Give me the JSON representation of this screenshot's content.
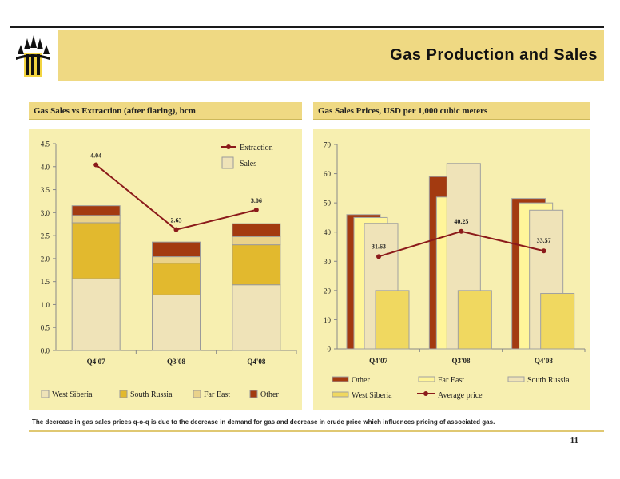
{
  "header": {
    "title": "Gas Production and Sales"
  },
  "left_panel": {
    "heading": "Gas Sales vs Extraction (after flaring), bcm"
  },
  "right_panel": {
    "heading": "Gas Sales Prices, USD per 1,000 cubic meters"
  },
  "footnote": "The decrease in gas sales prices q-o-q is due to the decrease in demand for gas and decrease in crude price which influences pricing of associated gas.",
  "page_number": "11",
  "colors": {
    "accent": "#efd983",
    "panel_bg": "#f7efb0",
    "line": "#8b1a1a"
  },
  "chart_data": [
    {
      "type": "bar",
      "stacked": true,
      "categories": [
        "Q4'07",
        "Q3'08",
        "Q4'08"
      ],
      "ylim": [
        0,
        4.5
      ],
      "yticks": [
        "0.0",
        "0.5",
        "1.0",
        "1.5",
        "2.0",
        "2.5",
        "3.0",
        "3.5",
        "4.0",
        "4.5"
      ],
      "series": [
        {
          "name": "West Siberia",
          "values": [
            1.56,
            1.21,
            1.43
          ],
          "color": "#efe3b8"
        },
        {
          "name": "South Russia",
          "values": [
            1.22,
            0.69,
            0.87
          ],
          "color": "#e2b92e"
        },
        {
          "name": "Far East",
          "values": [
            0.16,
            0.14,
            0.18
          ],
          "color": "#ead28a"
        },
        {
          "name": "Other",
          "values": [
            0.21,
            0.32,
            0.28
          ],
          "color": "#a33a10"
        }
      ],
      "line": {
        "name": "Extraction",
        "values": [
          4.04,
          2.63,
          3.06
        ],
        "labels": [
          "4.04",
          "2.63",
          "3.06"
        ]
      },
      "legend_top": [
        "Extraction",
        "Sales"
      ],
      "legend_bottom": [
        "West Siberia",
        "South Russia",
        "Far East",
        "Other"
      ]
    },
    {
      "type": "bar",
      "categories": [
        "Q4'07",
        "Q3'08",
        "Q4'08"
      ],
      "ylim": [
        0,
        70
      ],
      "yticks": [
        "0",
        "10",
        "20",
        "30",
        "40",
        "50",
        "60",
        "70"
      ],
      "series": [
        {
          "name": "Other",
          "values": [
            46,
            59,
            51.5
          ],
          "color": "#a33a10"
        },
        {
          "name": "Far East",
          "values": [
            45,
            52,
            50
          ],
          "color": "#fff59a"
        },
        {
          "name": "South Russia",
          "values": [
            43,
            63.5,
            47.5
          ],
          "color": "#efe3b8"
        },
        {
          "name": "West Siberia",
          "values": [
            20,
            20,
            19
          ],
          "color": "#f0d860"
        }
      ],
      "line": {
        "name": "Average price",
        "values": [
          31.63,
          40.25,
          33.57
        ],
        "labels": [
          "31.63",
          "40.25",
          "33.57"
        ]
      },
      "legend": [
        "Other",
        "Far East",
        "South Russia",
        "West Siberia",
        "Average price"
      ]
    }
  ]
}
